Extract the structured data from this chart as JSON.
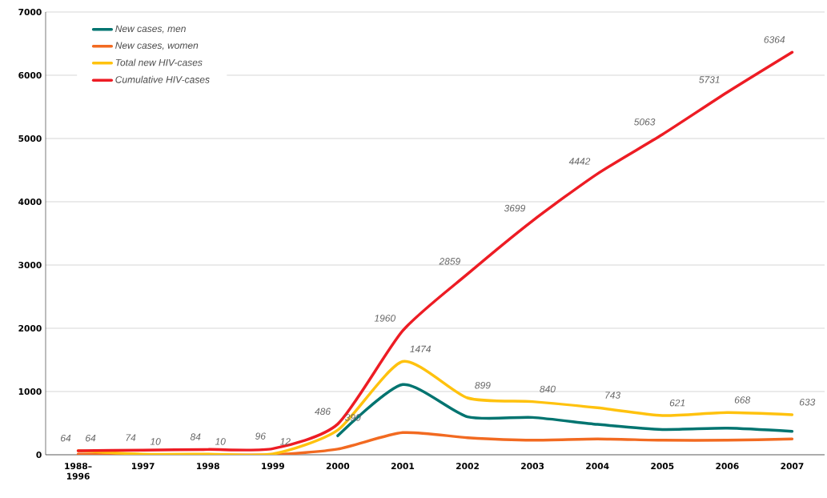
{
  "chart_data": {
    "type": "line",
    "categories": [
      "1988–1996",
      "1997",
      "1998",
      "1999",
      "2000",
      "2001",
      "2002",
      "2003",
      "2004",
      "2005",
      "2006",
      "2007"
    ],
    "series": [
      {
        "name": "New cases, men",
        "color": "#007470",
        "values": [
          null,
          null,
          null,
          null,
          300,
          1110,
          600,
          590,
          480,
          400,
          420,
          370
        ]
      },
      {
        "name": "New cases, women",
        "color": "#f26a21",
        "values": [
          10,
          0,
          0,
          0,
          90,
          350,
          270,
          230,
          250,
          230,
          230,
          250
        ]
      },
      {
        "name": "Total new HIV-cases",
        "color": "#ffc20e",
        "values": [
          64,
          10,
          10,
          12,
          390,
          1474,
          899,
          840,
          743,
          621,
          668,
          633
        ],
        "value_labels": [
          "64",
          "10",
          "10",
          "12",
          "390",
          "1474",
          "899",
          "840",
          "743",
          "621",
          "668",
          "633"
        ]
      },
      {
        "name": "Cumulative HIV-cases",
        "color": "#ed1c24",
        "values": [
          64,
          74,
          84,
          96,
          486,
          1960,
          2859,
          3699,
          4442,
          5063,
          5731,
          6364
        ],
        "value_labels": [
          "64",
          "74",
          "84",
          "96",
          "486",
          "1960",
          "2859",
          "3699",
          "4442",
          "5063",
          "5731",
          "6364"
        ]
      }
    ],
    "ylim": [
      0,
      7000
    ],
    "yticks": [
      0,
      1000,
      2000,
      3000,
      4000,
      5000,
      6000,
      7000
    ],
    "grid": "y",
    "legend": "top left",
    "marker": "none",
    "line_style": "solid"
  }
}
